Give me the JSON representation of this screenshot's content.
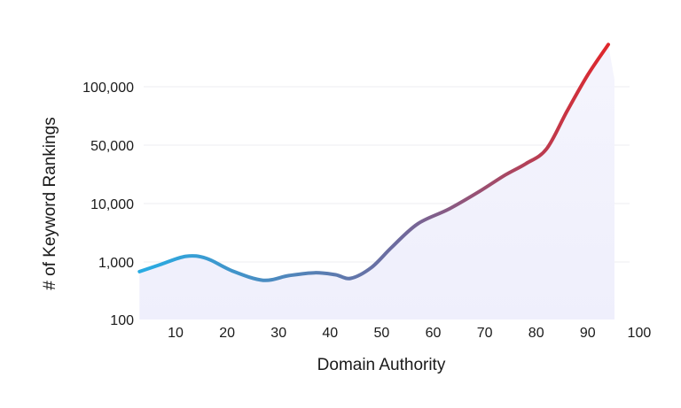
{
  "chart_data": {
    "type": "area",
    "xlabel": "Domain Authority",
    "ylabel": "# of Keyword Rankings",
    "x_ticks": [
      "10",
      "20",
      "30",
      "40",
      "50",
      "60",
      "70",
      "80",
      "90",
      "100"
    ],
    "y_ticks": [
      "100",
      "1,000",
      "10,000",
      "50,000",
      "100,000"
    ],
    "y_scale": "stepped (100, 1,000, 10,000, 50,000, 100,000 equally spaced)",
    "xlim": [
      3,
      100
    ],
    "grid": "horizontal, light",
    "legend": "none",
    "series": [
      {
        "x": [
          3,
          7,
          12,
          16,
          21,
          27,
          32,
          37,
          41,
          44,
          48,
          52,
          57,
          63,
          69,
          74,
          78,
          82,
          86,
          90,
          94
        ],
        "y": [
          680,
          900,
          1250,
          1150,
          700,
          480,
          580,
          650,
          600,
          520,
          800,
          1800,
          4500,
          8000,
          14000,
          22000,
          30000,
          45000,
          75000,
          115000,
          165000
        ]
      }
    ],
    "colors": {
      "line_start": "#29abe2",
      "line_mid": "#6e6a9e",
      "line_end": "#e0262b",
      "fill": "#efeffc",
      "grid": "#ececf2"
    }
  }
}
